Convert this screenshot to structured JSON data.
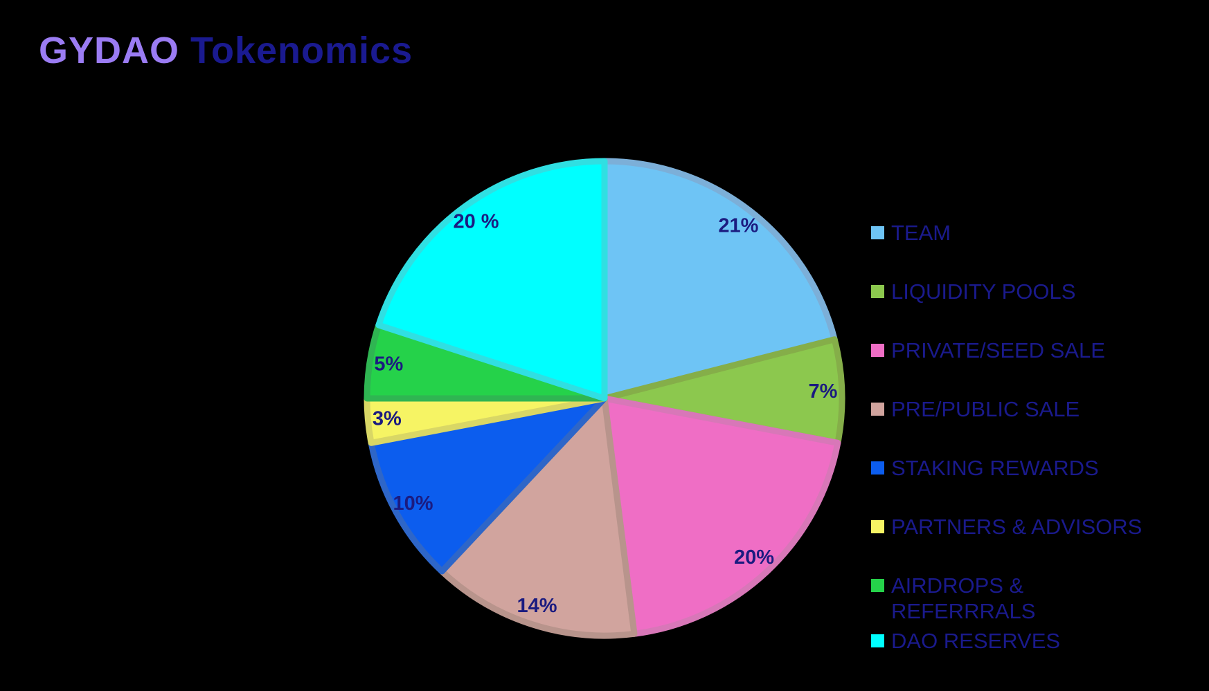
{
  "title": {
    "part1": "GYDAO",
    "part2": " Tokenomics",
    "part1_color": "#9B7CF3",
    "part2_color": "#1A1A90"
  },
  "background_color": "#000000",
  "slice_label_color": "#1B1B80",
  "legend_text_color": "#1A1A8C",
  "chart_data": {
    "type": "pie",
    "title": "GYDAO Tokenomics",
    "legend_position": "right",
    "start_angle_deg": 0,
    "direction": "clockwise",
    "total": 100,
    "segments": [
      {
        "label": "TEAM",
        "value": 21,
        "display": "21%",
        "color": "#6EC4F5",
        "border_color": "#7CAFD8"
      },
      {
        "label": "LIQUIDITY POOLS",
        "value": 7,
        "display": "7%",
        "color": "#8CC84E",
        "border_color": "#85AE49"
      },
      {
        "label": "PRIVATE/SEED SALE",
        "value": 20,
        "display": "20%",
        "color": "#EF6EC5",
        "border_color": "#D877B8"
      },
      {
        "label": "PRE/PUBLIC SALE",
        "value": 14,
        "display": "14%",
        "color": "#D1A49E",
        "border_color": "#B8948C"
      },
      {
        "label": "STAKING REWARDS",
        "value": 10,
        "display": "10%",
        "color": "#0C5DEE",
        "border_color": "#2E66C8"
      },
      {
        "label": "PARTNERS & ADVISORS",
        "value": 3,
        "display": "3%",
        "color": "#F6F464",
        "border_color": "#D9D765"
      },
      {
        "label": "AIRDROPS & REFERRRALS",
        "value": 5,
        "display": "5%",
        "color": "#25D24A",
        "border_color": "#2FB552"
      },
      {
        "label": "DAO RESERVES",
        "value": 20,
        "display": "20 %",
        "color": "#00FFFF",
        "border_color": "#30DFE2"
      }
    ]
  }
}
